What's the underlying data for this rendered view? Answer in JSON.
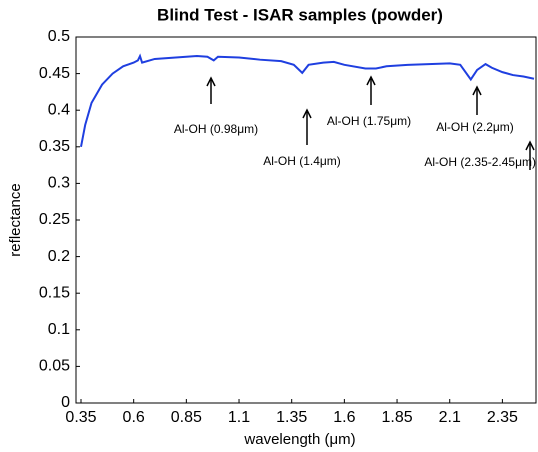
{
  "chart_data": {
    "type": "line",
    "title": "Blind Test - ISAR samples (powder)",
    "xlabel": "wavelength (μm)",
    "ylabel": "reflectance",
    "x": [
      0.35,
      0.37,
      0.4,
      0.45,
      0.5,
      0.55,
      0.6,
      0.62,
      0.63,
      0.64,
      0.7,
      0.8,
      0.9,
      0.95,
      0.98,
      1.0,
      1.1,
      1.2,
      1.3,
      1.36,
      1.4,
      1.43,
      1.5,
      1.55,
      1.6,
      1.7,
      1.75,
      1.8,
      1.9,
      2.0,
      2.1,
      2.15,
      2.2,
      2.23,
      2.27,
      2.3,
      2.35,
      2.4,
      2.45,
      2.5
    ],
    "series": [
      {
        "color": "#1f3fe0",
        "values": [
          0.35,
          0.38,
          0.41,
          0.435,
          0.45,
          0.46,
          0.465,
          0.468,
          0.474,
          0.465,
          0.47,
          0.472,
          0.474,
          0.473,
          0.468,
          0.473,
          0.472,
          0.469,
          0.467,
          0.462,
          0.451,
          0.462,
          0.465,
          0.466,
          0.462,
          0.457,
          0.457,
          0.46,
          0.462,
          0.463,
          0.464,
          0.462,
          0.442,
          0.455,
          0.463,
          0.458,
          0.452,
          0.448,
          0.446,
          0.443
        ]
      }
    ],
    "xlim": [
      0.35,
      2.5
    ],
    "ylim": [
      0,
      0.5
    ],
    "xticks": [
      0.35,
      0.6,
      0.85,
      1.1,
      1.35,
      1.6,
      1.85,
      2.1,
      2.35
    ],
    "yticks": [
      0,
      0.05,
      0.1,
      0.15,
      0.2,
      0.25,
      0.3,
      0.35,
      0.4,
      0.45,
      0.5
    ],
    "annotations": [
      "Al-OH (0.98μm)",
      "Al-OH (1.4μm)",
      "Al-OH (1.75μm)",
      "Al-OH (2.2μm)",
      "Al-OH (2.35-2.45μm)"
    ]
  }
}
